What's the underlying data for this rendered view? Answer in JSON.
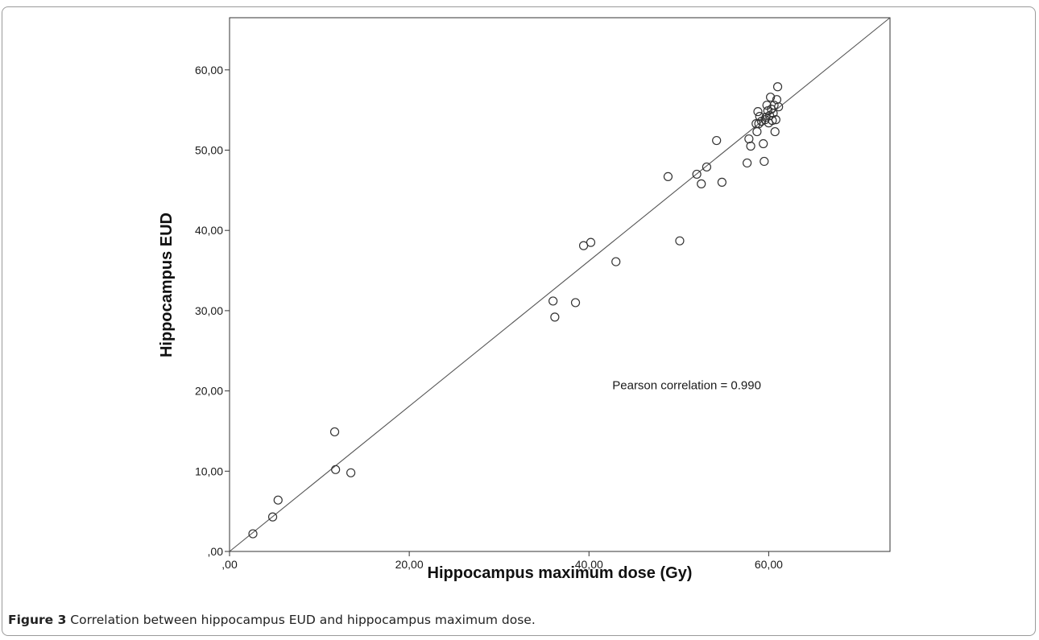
{
  "caption": {
    "lead": "Figure 3",
    "text": " Correlation between hippocampus EUD and hippocampus maximum dose."
  },
  "chart_data": {
    "type": "scatter",
    "title": "",
    "xlabel": "Hippocampus maximum dose (Gy)",
    "ylabel": "Hippocampus EUD",
    "xlim": [
      0,
      73.5
    ],
    "ylim": [
      0,
      66.5
    ],
    "x_ticks": [
      0,
      20,
      40,
      60
    ],
    "x_tick_labels": [
      ",00",
      "20,00",
      "40,00",
      "60,00"
    ],
    "y_ticks": [
      0,
      10,
      20,
      30,
      40,
      50,
      60
    ],
    "y_tick_labels": [
      ",00",
      "10,00",
      "20,00",
      "30,00",
      "40,00",
      "50,00",
      "60,00"
    ],
    "grid": false,
    "fit_line": {
      "from": [
        0,
        0
      ],
      "to": [
        73.5,
        66.5
      ]
    },
    "annotation": {
      "text": "Pearson correlation = 0.990",
      "x": 42.6,
      "y": 20.7
    },
    "points": [
      [
        2.6,
        2.2
      ],
      [
        4.8,
        4.3
      ],
      [
        5.4,
        6.4
      ],
      [
        11.7,
        14.9
      ],
      [
        11.8,
        10.2
      ],
      [
        13.5,
        9.8
      ],
      [
        36.0,
        31.2
      ],
      [
        36.2,
        29.2
      ],
      [
        38.5,
        31.0
      ],
      [
        39.4,
        38.1
      ],
      [
        40.2,
        38.5
      ],
      [
        43.0,
        36.1
      ],
      [
        48.8,
        46.7
      ],
      [
        50.1,
        38.7
      ],
      [
        52.0,
        47.0
      ],
      [
        52.5,
        45.8
      ],
      [
        53.1,
        47.9
      ],
      [
        54.2,
        51.2
      ],
      [
        54.8,
        46.0
      ],
      [
        57.6,
        48.4
      ],
      [
        57.8,
        51.4
      ],
      [
        58.0,
        50.5
      ],
      [
        58.6,
        53.3
      ],
      [
        58.7,
        52.3
      ],
      [
        58.8,
        54.8
      ],
      [
        59.0,
        54.2
      ],
      [
        59.2,
        53.6
      ],
      [
        59.4,
        50.8
      ],
      [
        59.5,
        48.6
      ],
      [
        59.6,
        53.8
      ],
      [
        59.8,
        55.6
      ],
      [
        59.9,
        54.9
      ],
      [
        60.0,
        53.4
      ],
      [
        60.1,
        54.3
      ],
      [
        60.2,
        56.6
      ],
      [
        60.3,
        55.1
      ],
      [
        60.4,
        53.7
      ],
      [
        60.6,
        55.6
      ],
      [
        60.7,
        52.3
      ],
      [
        60.8,
        53.8
      ],
      [
        60.9,
        56.3
      ],
      [
        61.0,
        57.9
      ],
      [
        61.1,
        55.4
      ],
      [
        58.9,
        53.3
      ],
      [
        59.7,
        54.1
      ],
      [
        60.5,
        54.6
      ]
    ]
  }
}
